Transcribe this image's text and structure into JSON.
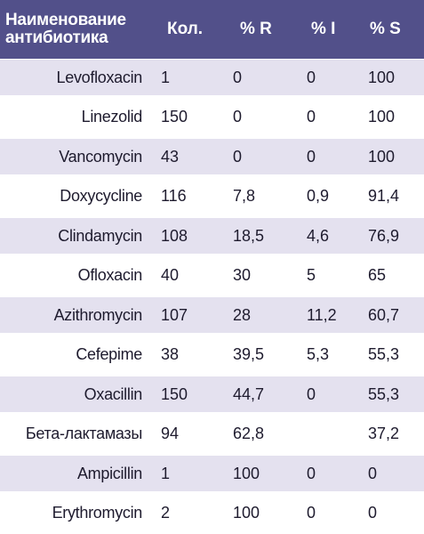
{
  "header": {
    "name": "Наименование\nантибиотика",
    "count": "Кол.",
    "r": "% R",
    "i": "% I",
    "s": "% S"
  },
  "rows": [
    {
      "name": "Levofloxacin",
      "count": "1",
      "r": "0",
      "i": "0",
      "s": "100"
    },
    {
      "name": "Linezolid",
      "count": "150",
      "r": "0",
      "i": "0",
      "s": "100"
    },
    {
      "name": "Vancomycin",
      "count": "43",
      "r": "0",
      "i": "0",
      "s": "100"
    },
    {
      "name": "Doxycycline",
      "count": "116",
      "r": "7,8",
      "i": "0,9",
      "s": "91,4"
    },
    {
      "name": "Clindamycin",
      "count": "108",
      "r": "18,5",
      "i": "4,6",
      "s": "76,9"
    },
    {
      "name": "Ofloxacin",
      "count": "40",
      "r": "30",
      "i": "5",
      "s": "65"
    },
    {
      "name": "Azithromycin",
      "count": "107",
      "r": "28",
      "i": "11,2",
      "s": "60,7"
    },
    {
      "name": "Cefepime",
      "count": "38",
      "r": "39,5",
      "i": "5,3",
      "s": "55,3"
    },
    {
      "name": "Oxacillin",
      "count": "150",
      "r": "44,7",
      "i": "0",
      "s": "55,3"
    },
    {
      "name": "Бета-лактамазы",
      "count": "94",
      "r": "62,8",
      "i": "",
      "s": "37,2"
    },
    {
      "name": "Ampicillin",
      "count": "1",
      "r": "100",
      "i": "0",
      "s": "0"
    },
    {
      "name": "Erythromycin",
      "count": "2",
      "r": "100",
      "i": "0",
      "s": "0"
    }
  ],
  "colors": {
    "header_bg": "#52508a",
    "stripe_bg": "#e4e1ef",
    "text": "#1e1b2e"
  }
}
